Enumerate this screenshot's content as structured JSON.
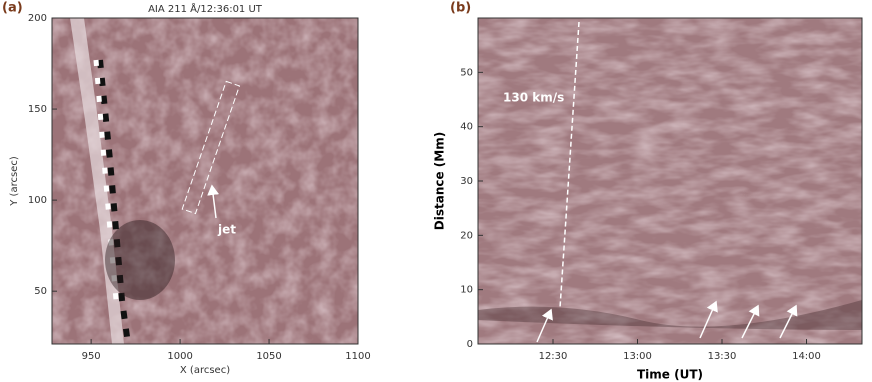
{
  "chart_data": [
    {
      "type": "image",
      "panel_label": "(a)",
      "title": "AIA 211 Å/12:36:01 UT",
      "xlabel": "X (arcsec)",
      "ylabel": "Y (arcsec)",
      "annotation": "jet",
      "xlim": [
        928,
        1100
      ],
      "ylim": [
        21,
        200
      ],
      "xticks": [
        950,
        1000,
        1050,
        1100
      ],
      "yticks": [
        50,
        100,
        150,
        200
      ]
    },
    {
      "type": "image",
      "panel_label": "(b)",
      "xlabel": "Time (UT)",
      "ylabel": "Distance (Mm)",
      "annotation": "130 km/s",
      "xticks": [
        "12:30",
        "13:00",
        "13:30",
        "14:00"
      ],
      "ylim": [
        0,
        60
      ],
      "yticks": [
        0,
        10,
        20,
        30,
        40,
        50
      ]
    }
  ]
}
